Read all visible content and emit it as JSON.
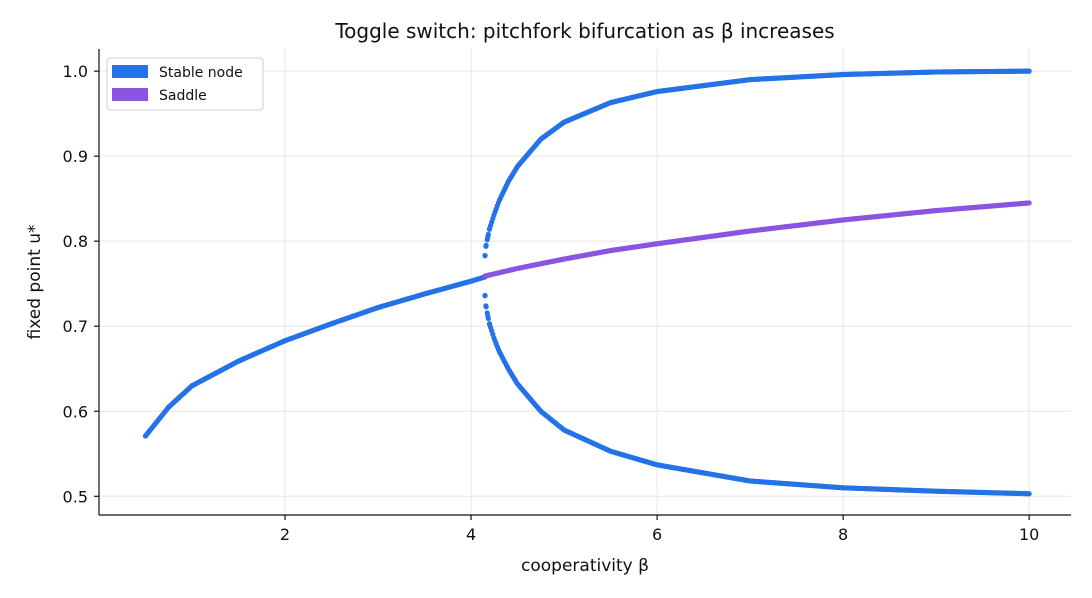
{
  "chart_data": {
    "type": "scatter",
    "title": "Toggle switch: pitchfork bifurcation as β increases",
    "xlabel": "cooperativity β",
    "ylabel": "fixed point u*",
    "xlim": [
      0,
      10.45
    ],
    "ylim": [
      0.478,
      1.026
    ],
    "xticks": [
      2,
      4,
      6,
      8,
      10
    ],
    "yticks": [
      0.5,
      0.6,
      0.7,
      0.8,
      0.9,
      1.0
    ],
    "grid": true,
    "legend_position": "top-left",
    "bifurcation_beta": 4.15,
    "series": [
      {
        "name": "Stable node",
        "color": "#2472e8",
        "branches": [
          {
            "x": [
              0.5,
              0.75,
              1.0,
              1.5,
              2.0,
              2.5,
              3.0,
              3.5,
              4.0,
              4.15
            ],
            "y": [
              0.571,
              0.605,
              0.63,
              0.659,
              0.683,
              0.703,
              0.722,
              0.738,
              0.753,
              0.758
            ]
          },
          {
            "x": [
              4.15,
              4.16,
              4.18,
              4.2,
              4.25,
              4.3,
              4.4,
              4.5,
              4.75,
              5.0,
              5.5,
              6.0,
              7.0,
              8.0,
              9.0,
              10.0
            ],
            "y": [
              0.783,
              0.794,
              0.805,
              0.815,
              0.832,
              0.847,
              0.87,
              0.888,
              0.92,
              0.94,
              0.963,
              0.976,
              0.99,
              0.996,
              0.999,
              1.0
            ]
          },
          {
            "x": [
              4.15,
              4.16,
              4.18,
              4.2,
              4.25,
              4.3,
              4.4,
              4.5,
              4.75,
              5.0,
              5.5,
              6.0,
              7.0,
              8.0,
              9.0,
              10.0
            ],
            "y": [
              0.736,
              0.724,
              0.712,
              0.702,
              0.685,
              0.671,
              0.65,
              0.632,
              0.6,
              0.578,
              0.553,
              0.537,
              0.518,
              0.51,
              0.506,
              0.503
            ]
          }
        ]
      },
      {
        "name": "Saddle",
        "color": "#8a55e0",
        "branches": [
          {
            "x": [
              4.15,
              4.5,
              5.0,
              5.5,
              6.0,
              7.0,
              8.0,
              9.0,
              10.0
            ],
            "y": [
              0.759,
              0.768,
              0.779,
              0.789,
              0.797,
              0.812,
              0.825,
              0.836,
              0.845
            ]
          }
        ]
      }
    ]
  }
}
